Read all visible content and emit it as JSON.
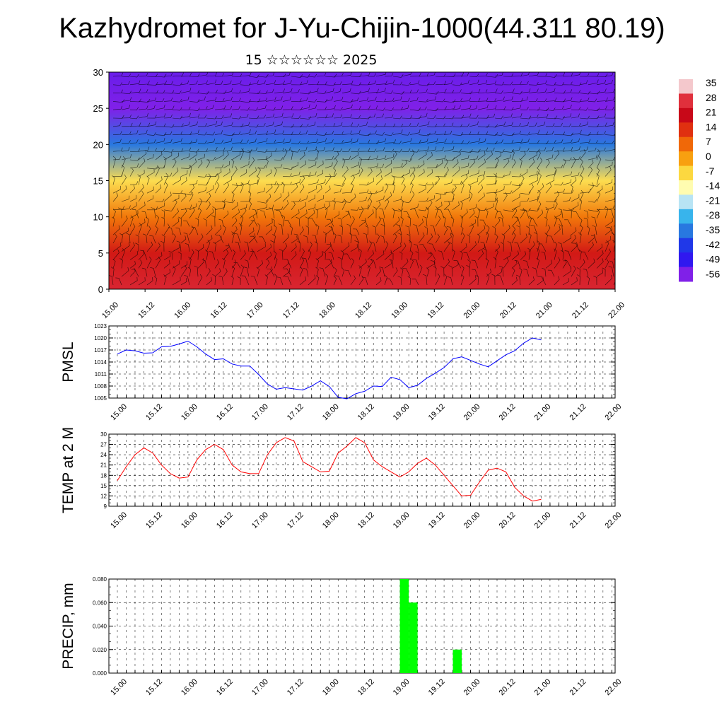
{
  "title": "Kazhydromet for J-Yu-Chijin-1000(44.311 80.19)",
  "subtitle": "15 ☆☆☆☆☆☆ 2025",
  "x_tick_labels": [
    "15.00",
    "15.12",
    "16.00",
    "16.12",
    "17.00",
    "17.12",
    "18.00",
    "18.12",
    "19.00",
    "19.12",
    "20.00",
    "20.12",
    "21.00",
    "21.12",
    "22.00"
  ],
  "colors": {
    "pmsl_line": "#0000ff",
    "temp_line": "#ff0000",
    "precip_bar": "#00ff00",
    "grid": "#000000"
  },
  "chart_data": [
    {
      "type": "heatmap",
      "title": "",
      "xlabel": "",
      "ylabel": "",
      "ylim": [
        0,
        30
      ],
      "y_ticks": [
        0,
        5,
        10,
        15,
        20,
        25,
        30
      ],
      "x_range_hours": [
        0,
        168
      ],
      "overlay": "wind barbs",
      "colorbar_labels": [
        "35",
        "28",
        "21",
        "14",
        "7",
        "0",
        "-7",
        "-14",
        "-21",
        "-28",
        "-35",
        "-42",
        "-49",
        "-56"
      ],
      "colorbar_palette": [
        "#f4c8cc",
        "#e0303c",
        "#c80818",
        "#e03010",
        "#f06808",
        "#f8a010",
        "#fcd840",
        "#fffcb0",
        "#b8e4f4",
        "#38b4ec",
        "#2878e0",
        "#2038e8",
        "#3018f0",
        "#8020e8"
      ],
      "temperature_by_height": {
        "heights": [
          0,
          5,
          10,
          15,
          20,
          25,
          30
        ],
        "values": [
          26,
          18,
          5,
          -8,
          -35,
          -58,
          -54
        ]
      }
    },
    {
      "type": "line",
      "name": "PMSL",
      "ylabel": "PMSL",
      "ylim": [
        1005,
        1023
      ],
      "y_ticks": [
        1005,
        1008,
        1011,
        1014,
        1017,
        1020,
        1023
      ],
      "x_hours": [
        0,
        3,
        6,
        9,
        12,
        15,
        18,
        21,
        24,
        27,
        30,
        33,
        36,
        39,
        42,
        45,
        48,
        51,
        54,
        57,
        60,
        63,
        66,
        69,
        72,
        75,
        78,
        81,
        84,
        87,
        90,
        93,
        96,
        99,
        102,
        105,
        108,
        111,
        114,
        117,
        120,
        123,
        126,
        129,
        132,
        135,
        138,
        141,
        144
      ],
      "values": [
        1016,
        1017,
        1016.8,
        1016.2,
        1016.3,
        1017.8,
        1017.9,
        1018.5,
        1019.2,
        1017.8,
        1016,
        1014.6,
        1014.8,
        1013.5,
        1013,
        1013,
        1010.9,
        1008.5,
        1007.2,
        1007.6,
        1007.3,
        1007,
        1008,
        1009.3,
        1007.9,
        1005.2,
        1004.8,
        1006.1,
        1006.7,
        1008,
        1007.9,
        1010.2,
        1009.6,
        1007.6,
        1008.2,
        1009.9,
        1011.2,
        1012.6,
        1014.8,
        1015.3,
        1014.4,
        1013.5,
        1012.8,
        1014.3,
        1015.8,
        1016.8,
        1018.7,
        1020,
        1019.5
      ]
    },
    {
      "type": "line",
      "name": "TEMP at 2 M",
      "ylabel": "TEMP at 2 M",
      "ylim": [
        9,
        30
      ],
      "y_ticks": [
        9,
        12,
        15,
        18,
        21,
        24,
        27,
        30
      ],
      "x_hours": [
        0,
        3,
        6,
        9,
        12,
        15,
        18,
        21,
        24,
        27,
        30,
        33,
        36,
        39,
        42,
        45,
        48,
        51,
        54,
        57,
        60,
        63,
        66,
        69,
        72,
        75,
        78,
        81,
        84,
        87,
        90,
        93,
        96,
        99,
        102,
        105,
        108,
        111,
        114,
        117,
        120,
        123,
        126,
        129,
        132,
        135,
        138,
        141,
        144
      ],
      "values": [
        16.5,
        20.5,
        24,
        26,
        24.5,
        21,
        18.5,
        17.2,
        17.5,
        22.5,
        25.5,
        27,
        25.5,
        21,
        19,
        18.5,
        18.5,
        24,
        27.5,
        29,
        28,
        22,
        20.5,
        19,
        19.2,
        24.5,
        26.5,
        29,
        27.5,
        22.5,
        20.5,
        19,
        17.5,
        19,
        21.5,
        23,
        21,
        18,
        15,
        12,
        12.2,
        16,
        19.5,
        20.1,
        19,
        14.5,
        12,
        10.5,
        11
      ]
    },
    {
      "type": "bar",
      "name": "PRECIP, mm",
      "ylabel": "PRECIP, mm",
      "ylim": [
        0,
        0.08
      ],
      "y_ticks": [
        "0.000",
        "0.020",
        "0.040",
        "0.060",
        "0.080"
      ],
      "bars": [
        {
          "start_hour": 96,
          "end_hour": 99,
          "value": 0.08
        },
        {
          "start_hour": 99,
          "end_hour": 102,
          "value": 0.06
        },
        {
          "start_hour": 114,
          "end_hour": 117,
          "value": 0.02
        }
      ]
    }
  ]
}
